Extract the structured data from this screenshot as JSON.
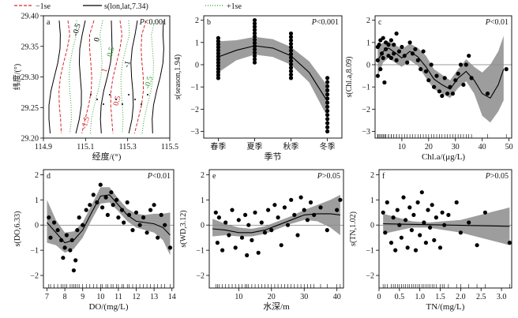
{
  "legend": {
    "items": [
      {
        "label": "−1se",
        "color": "#d62728",
        "dash": "4,2"
      },
      {
        "label": "s(lon,lat,7.34)",
        "color": "#000000",
        "dash": ""
      },
      {
        "label": "+1se",
        "color": "#2ca02c",
        "dash": "1,2"
      }
    ]
  },
  "chart_data": [
    {
      "id": "a",
      "type": "contour",
      "letter": "a",
      "p_text": "P<0.001",
      "xlabel": "经度/(°)",
      "ylabel": "纬度/(°)",
      "xlim": [
        114.9,
        115.5
      ],
      "ylim": [
        29.2,
        29.4
      ],
      "xticks": [
        "114.9",
        "115.1",
        "115.3",
        "115.5"
      ],
      "yticks": [
        "29.20",
        "29.25",
        "29.30",
        "29.35",
        "29.40"
      ],
      "contour_labels": [
        {
          "text": "-0.5",
          "color": "#000000"
        },
        {
          "text": "0",
          "color": "#000000"
        },
        {
          "text": "0.5",
          "color": "#2ca02c"
        },
        {
          "text": "1",
          "color": "#d62728"
        },
        {
          "text": "-1",
          "color": "#000000"
        },
        {
          "text": "-1.5",
          "color": "#d62728"
        },
        {
          "text": "0.5",
          "color": "#d62728"
        },
        {
          "text": "-0.5",
          "color": "#2ca02c"
        }
      ]
    },
    {
      "id": "b",
      "type": "scatter",
      "letter": "b",
      "p_text": "P<0.001",
      "xlabel": "季节",
      "ylabel": "s(season,1.94)",
      "categories": [
        "春季",
        "夏季",
        "秋季",
        "冬季"
      ],
      "ylim": [
        -3.3,
        2.2
      ],
      "yticks": [
        -3,
        -2,
        -1,
        0,
        1,
        2
      ],
      "fit": [
        [
          1,
          0.35
        ],
        [
          1.5,
          0.65
        ],
        [
          2,
          0.85
        ],
        [
          2.5,
          0.75
        ],
        [
          3,
          0.4
        ],
        [
          3.5,
          -0.35
        ],
        [
          4,
          -1.65
        ]
      ],
      "band": [
        [
          1,
          -0.35,
          1.05
        ],
        [
          1.5,
          0.2,
          1.1
        ],
        [
          2,
          0.45,
          1.25
        ],
        [
          2.5,
          0.35,
          1.15
        ],
        [
          3,
          0.0,
          0.8
        ],
        [
          3.5,
          -0.8,
          0.15
        ],
        [
          4,
          -2.35,
          -0.95
        ]
      ],
      "points_per_category": {
        "1": [
          -0.6,
          1.2
        ],
        "2": [
          0.1,
          2.0
        ],
        "3": [
          -0.6,
          1.4
        ],
        "4": [
          -3.0,
          -0.6
        ]
      }
    },
    {
      "id": "c",
      "type": "gam",
      "letter": "c",
      "p_text": "P<0.01",
      "xlabel": "Chl.a/(μg/L)",
      "ylabel": "s(Chl.a,8.09)",
      "xlim": [
        0,
        51
      ],
      "ylim": [
        -3.3,
        2.2
      ],
      "xticks": [
        10,
        20,
        30,
        40,
        50
      ],
      "yticks": [
        -3,
        -2,
        -1,
        0,
        1,
        2
      ],
      "fit": [
        [
          1,
          0.2
        ],
        [
          3,
          0.6
        ],
        [
          5,
          0.75
        ],
        [
          8,
          0.5
        ],
        [
          10,
          0.3
        ],
        [
          13,
          0.6
        ],
        [
          16,
          0.35
        ],
        [
          19,
          -0.1
        ],
        [
          22,
          -0.65
        ],
        [
          25,
          -0.9
        ],
        [
          28,
          -1.1
        ],
        [
          31,
          -0.6
        ],
        [
          34,
          -0.3
        ],
        [
          37,
          -0.7
        ],
        [
          40,
          -1.3
        ],
        [
          43,
          -1.5
        ],
        [
          46,
          -0.9
        ],
        [
          48,
          -0.2
        ]
      ],
      "band": [
        [
          1,
          -0.5,
          0.8
        ],
        [
          3,
          0.1,
          1.0
        ],
        [
          5,
          0.3,
          1.05
        ],
        [
          8,
          0.05,
          0.85
        ],
        [
          10,
          -0.1,
          0.7
        ],
        [
          13,
          0.2,
          0.95
        ],
        [
          16,
          -0.05,
          0.75
        ],
        [
          19,
          -0.6,
          0.4
        ],
        [
          22,
          -1.1,
          -0.2
        ],
        [
          25,
          -1.3,
          -0.45
        ],
        [
          28,
          -1.5,
          -0.7
        ],
        [
          31,
          -1.05,
          -0.2
        ],
        [
          34,
          -0.75,
          0.25
        ],
        [
          37,
          -1.3,
          -0.1
        ],
        [
          40,
          -2.3,
          -0.35
        ],
        [
          43,
          -2.6,
          0.0
        ],
        [
          46,
          -2.1,
          0.6
        ],
        [
          48,
          -1.6,
          1.3
        ]
      ],
      "points": [
        [
          1,
          0.2
        ],
        [
          1,
          -0.5
        ],
        [
          1,
          0.8
        ],
        [
          1.5,
          0.9
        ],
        [
          2,
          1.1
        ],
        [
          2,
          -0.2
        ],
        [
          2.5,
          0.5
        ],
        [
          3,
          1.2
        ],
        [
          3,
          0.3
        ],
        [
          3.5,
          -0.8
        ],
        [
          4,
          0.7
        ],
        [
          4,
          1.0
        ],
        [
          5,
          0.9
        ],
        [
          5,
          0.4
        ],
        [
          6,
          1.1
        ],
        [
          6,
          0.3
        ],
        [
          7,
          0.5
        ],
        [
          7,
          0.9
        ],
        [
          8,
          1.4
        ],
        [
          8,
          0.2
        ],
        [
          9,
          0.6
        ],
        [
          10,
          0.8
        ],
        [
          11,
          0.4
        ],
        [
          12,
          0.1
        ],
        [
          13,
          1.0
        ],
        [
          14,
          0.5
        ],
        [
          15,
          0.7
        ],
        [
          16,
          0.2
        ],
        [
          17,
          -0.2
        ],
        [
          18,
          0.6
        ],
        [
          19,
          -0.3
        ],
        [
          20,
          -0.7
        ],
        [
          21,
          0.0
        ],
        [
          22,
          -1.0
        ],
        [
          23,
          -0.5
        ],
        [
          24,
          -1.2
        ],
        [
          25,
          -1.4
        ],
        [
          26,
          -0.6
        ],
        [
          27,
          -1.3
        ],
        [
          28,
          -1.0
        ],
        [
          29,
          -1.3
        ],
        [
          30,
          -0.7
        ],
        [
          31,
          -0.4
        ],
        [
          32,
          0.0
        ],
        [
          33,
          -0.9
        ],
        [
          34,
          0.0
        ],
        [
          35,
          0.4
        ],
        [
          36,
          -0.6
        ],
        [
          42,
          -1.3
        ],
        [
          49,
          -0.2
        ]
      ]
    },
    {
      "id": "d",
      "type": "gam",
      "letter": "d",
      "p_text": "P<0.01",
      "xlabel": "DO/(mg/L)",
      "ylabel": "s(DO,6.33)",
      "xlim": [
        6.8,
        14.1
      ],
      "ylim": [
        -2.5,
        2.2
      ],
      "xticks": [
        7,
        8,
        9,
        10,
        11,
        12,
        13,
        14
      ],
      "yticks": [
        -2,
        -1,
        0,
        1,
        2
      ],
      "fit": [
        [
          7,
          0.1
        ],
        [
          7.5,
          -0.3
        ],
        [
          8,
          -0.7
        ],
        [
          8.5,
          -0.6
        ],
        [
          9,
          -0.2
        ],
        [
          9.5,
          0.5
        ],
        [
          10,
          1.15
        ],
        [
          10.5,
          1.2
        ],
        [
          11,
          0.8
        ],
        [
          11.5,
          0.4
        ],
        [
          12,
          0.15
        ],
        [
          12.5,
          0.1
        ],
        [
          13,
          0.05
        ],
        [
          13.5,
          -0.1
        ],
        [
          13.9,
          -0.4
        ]
      ],
      "band": [
        [
          7,
          -0.7,
          1.0
        ],
        [
          7.5,
          -0.8,
          0.2
        ],
        [
          8,
          -1.1,
          -0.3
        ],
        [
          8.5,
          -0.95,
          -0.25
        ],
        [
          9,
          -0.5,
          0.1
        ],
        [
          9.5,
          0.2,
          0.8
        ],
        [
          10,
          0.85,
          1.5
        ],
        [
          10.5,
          0.9,
          1.5
        ],
        [
          11,
          0.55,
          1.05
        ],
        [
          11.5,
          0.15,
          0.65
        ],
        [
          12,
          -0.1,
          0.45
        ],
        [
          12.5,
          -0.2,
          0.4
        ],
        [
          13,
          -0.3,
          0.45
        ],
        [
          13.5,
          -0.6,
          0.45
        ],
        [
          13.9,
          -1.2,
          0.5
        ]
      ],
      "points": [
        [
          7.1,
          0.3
        ],
        [
          7.2,
          -0.5
        ],
        [
          7.4,
          0.1
        ],
        [
          7.6,
          -0.2
        ],
        [
          7.8,
          -0.6
        ],
        [
          7.9,
          -1.3
        ],
        [
          8.0,
          -0.9
        ],
        [
          8.1,
          -0.4
        ],
        [
          8.3,
          -1.0
        ],
        [
          8.4,
          -0.6
        ],
        [
          8.5,
          -1.8
        ],
        [
          8.6,
          -1.4
        ],
        [
          8.7,
          -0.2
        ],
        [
          8.8,
          0.3
        ],
        [
          9.0,
          0.0
        ],
        [
          9.2,
          0.6
        ],
        [
          9.4,
          0.8
        ],
        [
          9.6,
          1.2
        ],
        [
          9.8,
          0.9
        ],
        [
          10.0,
          1.6
        ],
        [
          10.1,
          0.7
        ],
        [
          10.3,
          1.1
        ],
        [
          10.4,
          0.4
        ],
        [
          10.6,
          1.3
        ],
        [
          10.7,
          0.8
        ],
        [
          10.9,
          1.0
        ],
        [
          11.0,
          0.3
        ],
        [
          11.2,
          0.6
        ],
        [
          11.3,
          0.1
        ],
        [
          11.5,
          0.9
        ],
        [
          11.6,
          0.4
        ],
        [
          11.8,
          -0.2
        ],
        [
          12.0,
          0.5
        ],
        [
          12.2,
          0.0
        ],
        [
          12.4,
          0.3
        ],
        [
          12.6,
          -0.3
        ],
        [
          12.8,
          0.6
        ],
        [
          13.0,
          0.8
        ],
        [
          13.2,
          -0.5
        ],
        [
          13.4,
          0.4
        ],
        [
          13.6,
          0.0
        ],
        [
          13.9,
          -0.9
        ]
      ]
    },
    {
      "id": "e",
      "type": "gam",
      "letter": "e",
      "p_text": "P>0.05",
      "xlabel": "水深/m",
      "ylabel": "s(WD,3.12)",
      "xlim": [
        1,
        42
      ],
      "ylim": [
        -2.5,
        2.2
      ],
      "xticks": [
        10,
        20,
        30,
        40
      ],
      "yticks": [
        -2,
        -1,
        0,
        1,
        2
      ],
      "fit": [
        [
          2,
          -0.15
        ],
        [
          6,
          -0.2
        ],
        [
          10,
          -0.3
        ],
        [
          14,
          -0.3
        ],
        [
          18,
          -0.2
        ],
        [
          22,
          0.0
        ],
        [
          26,
          0.2
        ],
        [
          30,
          0.4
        ],
        [
          34,
          0.45
        ],
        [
          38,
          0.45
        ],
        [
          41,
          0.4
        ]
      ],
      "band": [
        [
          2,
          -0.45,
          0.25
        ],
        [
          6,
          -0.4,
          0.05
        ],
        [
          10,
          -0.45,
          -0.1
        ],
        [
          14,
          -0.45,
          -0.15
        ],
        [
          18,
          -0.35,
          -0.05
        ],
        [
          22,
          -0.15,
          0.15
        ],
        [
          26,
          0.05,
          0.35
        ],
        [
          30,
          0.2,
          0.6
        ],
        [
          34,
          0.15,
          0.8
        ],
        [
          38,
          -0.1,
          1.0
        ],
        [
          41,
          -0.4,
          1.2
        ]
      ],
      "points": [
        [
          3,
          0.5
        ],
        [
          3.5,
          -0.7
        ],
        [
          4,
          0.3
        ],
        [
          5,
          -1.0
        ],
        [
          6,
          0.1
        ],
        [
          7,
          -0.4
        ],
        [
          8,
          0.6
        ],
        [
          9,
          -0.9
        ],
        [
          10,
          0.2
        ],
        [
          11,
          -0.5
        ],
        [
          12,
          0.4
        ],
        [
          12.5,
          -1.2
        ],
        [
          13,
          0.0
        ],
        [
          14,
          -0.6
        ],
        [
          15,
          0.5
        ],
        [
          16,
          -1.1
        ],
        [
          17,
          0.1
        ],
        [
          18,
          -0.3
        ],
        [
          19,
          0.6
        ],
        [
          20,
          -0.2
        ],
        [
          21,
          0.8
        ],
        [
          22,
          0.3
        ],
        [
          23,
          -0.8
        ],
        [
          24,
          0.7
        ],
        [
          25,
          0.0
        ],
        [
          26,
          1.0
        ],
        [
          27,
          0.4
        ],
        [
          28,
          -0.4
        ],
        [
          29,
          1.1
        ],
        [
          30,
          0.6
        ],
        [
          31,
          0.2
        ],
        [
          32,
          0.9
        ],
        [
          33,
          0.4
        ],
        [
          35,
          0.7
        ],
        [
          37,
          -0.2
        ],
        [
          40,
          0.6
        ],
        [
          41,
          1.0
        ]
      ]
    },
    {
      "id": "f",
      "type": "gam",
      "letter": "f",
      "p_text": "P>0.05",
      "xlabel": "TN/(mg/L)",
      "ylabel": "s(TN,1.02)",
      "xlim": [
        0,
        3.25
      ],
      "ylim": [
        -2.5,
        2.2
      ],
      "xticks": [
        "0",
        "0.5",
        "1.0",
        "1.5",
        "2.0",
        "2.5",
        "3.0"
      ],
      "fit": [
        [
          0.1,
          0.05
        ],
        [
          3.2,
          -0.05
        ]
      ],
      "band": [
        [
          0.1,
          -0.35,
          0.45
        ],
        [
          0.8,
          -0.1,
          0.15
        ],
        [
          1.2,
          -0.1,
          0.1
        ],
        [
          2.0,
          -0.3,
          0.2
        ],
        [
          3.2,
          -0.8,
          0.7
        ]
      ],
      "yticks": [
        -2,
        -1,
        0,
        1,
        2
      ],
      "points": [
        [
          0.1,
          0.5
        ],
        [
          0.15,
          -0.3
        ],
        [
          0.2,
          0.9
        ],
        [
          0.3,
          -0.7
        ],
        [
          0.35,
          0.3
        ],
        [
          0.4,
          -1.0
        ],
        [
          0.45,
          0.6
        ],
        [
          0.5,
          0.0
        ],
        [
          0.55,
          -0.5
        ],
        [
          0.6,
          1.1
        ],
        [
          0.65,
          0.2
        ],
        [
          0.7,
          -0.9
        ],
        [
          0.75,
          0.7
        ],
        [
          0.8,
          -0.2
        ],
        [
          0.85,
          0.4
        ],
        [
          0.9,
          -1.0
        ],
        [
          0.95,
          0.9
        ],
        [
          1.0,
          -0.4
        ],
        [
          1.05,
          1.3
        ],
        [
          1.1,
          0.1
        ],
        [
          1.15,
          -0.7
        ],
        [
          1.2,
          0.6
        ],
        [
          1.25,
          -0.1
        ],
        [
          1.3,
          0.8
        ],
        [
          1.35,
          -0.6
        ],
        [
          1.4,
          0.3
        ],
        [
          1.5,
          -0.9
        ],
        [
          1.55,
          0.5
        ],
        [
          1.6,
          0.0
        ],
        [
          1.7,
          0.4
        ],
        [
          1.9,
          0.9
        ],
        [
          2.0,
          -0.3
        ],
        [
          2.2,
          0.1
        ],
        [
          2.4,
          -0.8
        ],
        [
          2.6,
          0.5
        ],
        [
          3.2,
          -0.7
        ]
      ]
    }
  ]
}
